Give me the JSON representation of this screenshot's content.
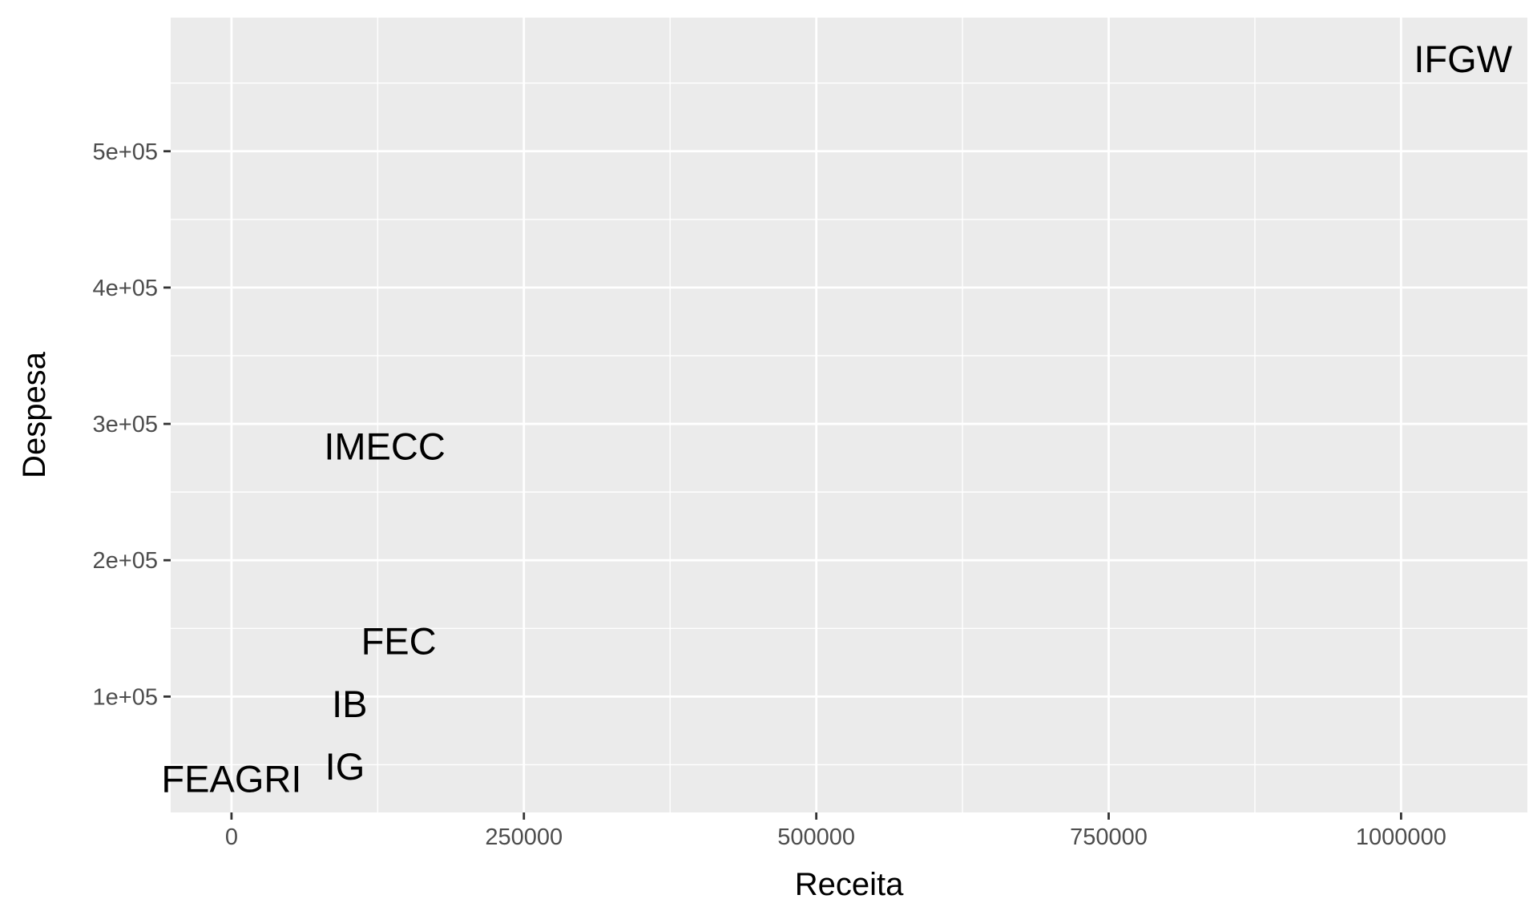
{
  "chart_data": {
    "type": "scatter",
    "geom": "text",
    "xlabel": "Receita",
    "ylabel": "Despesa",
    "xlim": [
      -52000,
      1108000
    ],
    "ylim": [
      15000,
      598000
    ],
    "x_ticks": [
      {
        "value": 0,
        "label": "0"
      },
      {
        "value": 250000,
        "label": "250000"
      },
      {
        "value": 500000,
        "label": "500000"
      },
      {
        "value": 750000,
        "label": "750000"
      },
      {
        "value": 1000000,
        "label": "1000000"
      }
    ],
    "y_ticks": [
      {
        "value": 100000,
        "label": "1e+05"
      },
      {
        "value": 200000,
        "label": "2e+05"
      },
      {
        "value": 300000,
        "label": "3e+05"
      },
      {
        "value": 400000,
        "label": "4e+05"
      },
      {
        "value": 500000,
        "label": "5e+05"
      }
    ],
    "grid": true,
    "background": "#ebebeb",
    "points": [
      {
        "label": "IFGW",
        "x": 1053000,
        "y": 568000
      },
      {
        "label": "IMECC",
        "x": 131000,
        "y": 284000
      },
      {
        "label": "FEC",
        "x": 143000,
        "y": 141000
      },
      {
        "label": "IB",
        "x": 101000,
        "y": 95000
      },
      {
        "label": "IG",
        "x": 97000,
        "y": 49000
      },
      {
        "label": "FEAGRI",
        "x": 0,
        "y": 40000
      }
    ]
  }
}
